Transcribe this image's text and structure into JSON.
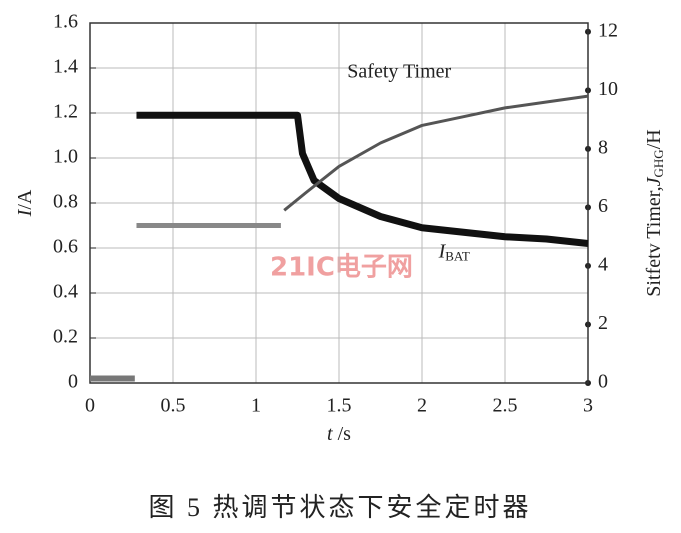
{
  "chart_data": {
    "type": "line",
    "y_label": [
      "I",
      "/A"
    ],
    "x_label": [
      "t",
      " /s"
    ],
    "y2_label": [
      "Sitfetv Timer,",
      "J",
      "GHG",
      "/H"
    ],
    "caption": "图 5   热调节状态下安全定时器",
    "watermark": "21IC电子网",
    "annotations": [
      {
        "text": "Safety Timer",
        "x": 1.55,
        "y": 1.38
      },
      {
        "text": "I",
        "sub": "BAT",
        "x": 2.1,
        "y": 0.58
      }
    ],
    "xlim": [
      0,
      3
    ],
    "ylim": [
      0,
      1.6
    ],
    "y2lim": [
      0,
      12.3
    ],
    "xticks": [
      0,
      0.5,
      {
        "value": 1,
        "label": "1"
      },
      1.5,
      2,
      2.5,
      3
    ],
    "yticks": [
      0,
      0.2,
      0.4,
      0.6,
      0.8,
      {
        "value": 1,
        "label": "1.0"
      },
      1.2,
      1.4,
      1.6
    ],
    "y2ticks": [
      0,
      2,
      4,
      6,
      8,
      10,
      12
    ],
    "grid": true,
    "series": [
      {
        "color": "#111111",
        "width": 7,
        "x": [
          0.28,
          1.25,
          1.28,
          1.35,
          1.5,
          1.75,
          2,
          2.25,
          2.5,
          2.75,
          3
        ],
        "values": [
          1.19,
          1.19,
          1.02,
          0.9,
          0.82,
          0.74,
          0.69,
          0.67,
          0.65,
          0.64,
          0.62
        ]
      },
      {
        "color": "#777777",
        "width": 6,
        "x": [
          0,
          0.27
        ],
        "values": [
          0.02,
          0.02
        ]
      },
      {
        "color": "#888888",
        "width": 5,
        "x": [
          0.28,
          1.15
        ],
        "values": [
          0.7,
          0.7
        ]
      },
      {
        "color": "#555555",
        "width": 3,
        "axis": "y2",
        "x": [
          1.17,
          1.3,
          1.5,
          1.75,
          2,
          2.25,
          2.5,
          2.75,
          3
        ],
        "values": [
          5.9,
          6.5,
          7.4,
          8.2,
          8.8,
          9.1,
          9.4,
          9.6,
          9.8
        ]
      }
    ]
  }
}
